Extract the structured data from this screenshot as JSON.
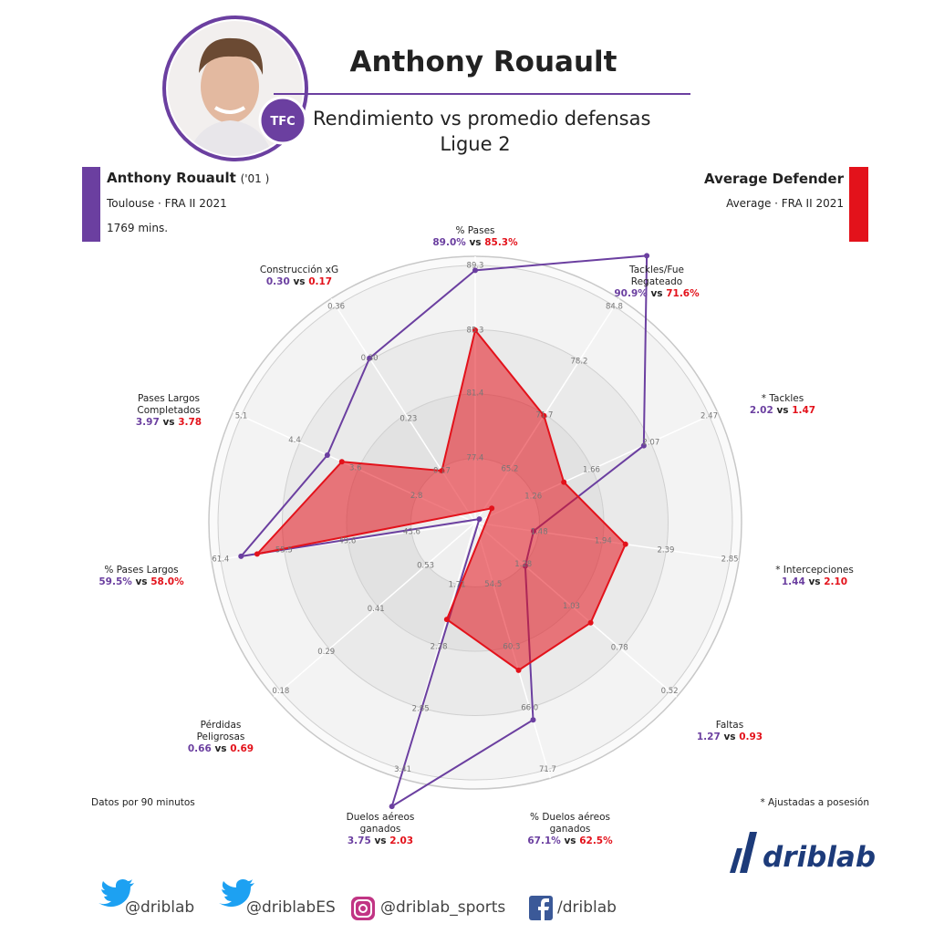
{
  "header": {
    "title": "Anthony Rouault",
    "subtitle": "Rendimiento vs promedio defensas",
    "league": "Ligue 2",
    "badge": "TFC"
  },
  "player": {
    "name": "Anthony Rouault",
    "born": "('01 )",
    "team_line": "Toulouse · FRA II 2021",
    "minutes": "1769 mins."
  },
  "reference": {
    "name": "Average Defender",
    "line": "Average · FRA II 2021"
  },
  "notes": {
    "left": "Datos por 90 minutos",
    "right": "* Ajustadas a posesión"
  },
  "brand": "driblab",
  "social": [
    "@driblab",
    "@driblabES",
    "@driblab_sports",
    "/driblab"
  ],
  "chart_data": {
    "type": "radar",
    "categories": [
      "% Pases",
      "Tackles/Fue Regateado",
      "* Tackles",
      "* Intercepciones",
      "Faltas",
      "% Duelos aéreos ganados",
      "Duelos aéreos ganados",
      "Pérdidas Peligrosas",
      "% Pases Largos",
      "Pases Largos Completados",
      "Construcción xG"
    ],
    "connector": "vs",
    "axes": [
      {
        "ylim": [
          73.4,
          89.3
        ],
        "yticks": [
          77.4,
          81.4,
          85.3,
          89.3
        ]
      },
      {
        "ylim": [
          58.7,
          84.8
        ],
        "yticks": [
          65.2,
          71.7,
          78.2,
          84.8
        ]
      },
      {
        "ylim": [
          0.86,
          2.47
        ],
        "yticks": [
          1.26,
          1.66,
          2.07,
          2.47
        ]
      },
      {
        "ylim": [
          1.02,
          2.85
        ],
        "yticks": [
          1.48,
          1.94,
          2.39,
          2.85
        ]
      },
      {
        "ylim": [
          1.53,
          0.52
        ],
        "yticks": [
          1.28,
          1.03,
          0.78,
          0.52
        ]
      },
      {
        "ylim": [
          48.8,
          71.7
        ],
        "yticks": [
          54.5,
          60.3,
          {
            "value": 66,
            "label": "66.0"
          },
          71.7
        ]
      },
      {
        "ylim": [
          1.14,
          3.41
        ],
        "yticks": [
          1.71,
          2.28,
          2.85,
          3.41
        ]
      },
      {
        "ylim": [
          0.65,
          0.18
        ],
        "yticks": [
          0.53,
          0.41,
          0.29,
          0.18
        ]
      },
      {
        "ylim": [
          37.7,
          61.4
        ],
        "yticks": [
          43.6,
          49.6,
          55.5,
          61.4
        ]
      },
      {
        "ylim": [
          2.03,
          5.1
        ],
        "yticks": [
          2.8,
          3.6,
          4.4,
          5.1
        ]
      },
      {
        "ylim": [
          0.11,
          0.36
        ],
        "yticks": [
          0.17,
          0.23,
          {
            "value": 0.3,
            "label": "0.30"
          },
          0.36
        ]
      }
    ],
    "series": [
      {
        "name": "Anthony Rouault",
        "color": "#6b3fa0",
        "values": [
          89.0,
          90.9,
          2.02,
          1.44,
          1.27,
          67.1,
          3.75,
          0.66,
          59.5,
          3.97,
          0.3
        ],
        "value_labels": [
          "89.0%",
          "90.9%",
          "2.02",
          "1.44",
          "1.27",
          "67.1%",
          "3.75",
          "0.66",
          "59.5%",
          "3.97",
          "0.30"
        ]
      },
      {
        "name": "Average Defender",
        "color": "#e3121b",
        "values": [
          85.3,
          71.6,
          1.47,
          2.1,
          0.93,
          62.5,
          2.03,
          0.69,
          58.0,
          3.78,
          0.17
        ],
        "value_labels": [
          "85.3%",
          "71.6%",
          "1.47",
          "2.10",
          "0.93",
          "62.5%",
          "2.03",
          "0.69",
          "58.0%",
          "3.78",
          "0.17"
        ]
      }
    ]
  }
}
